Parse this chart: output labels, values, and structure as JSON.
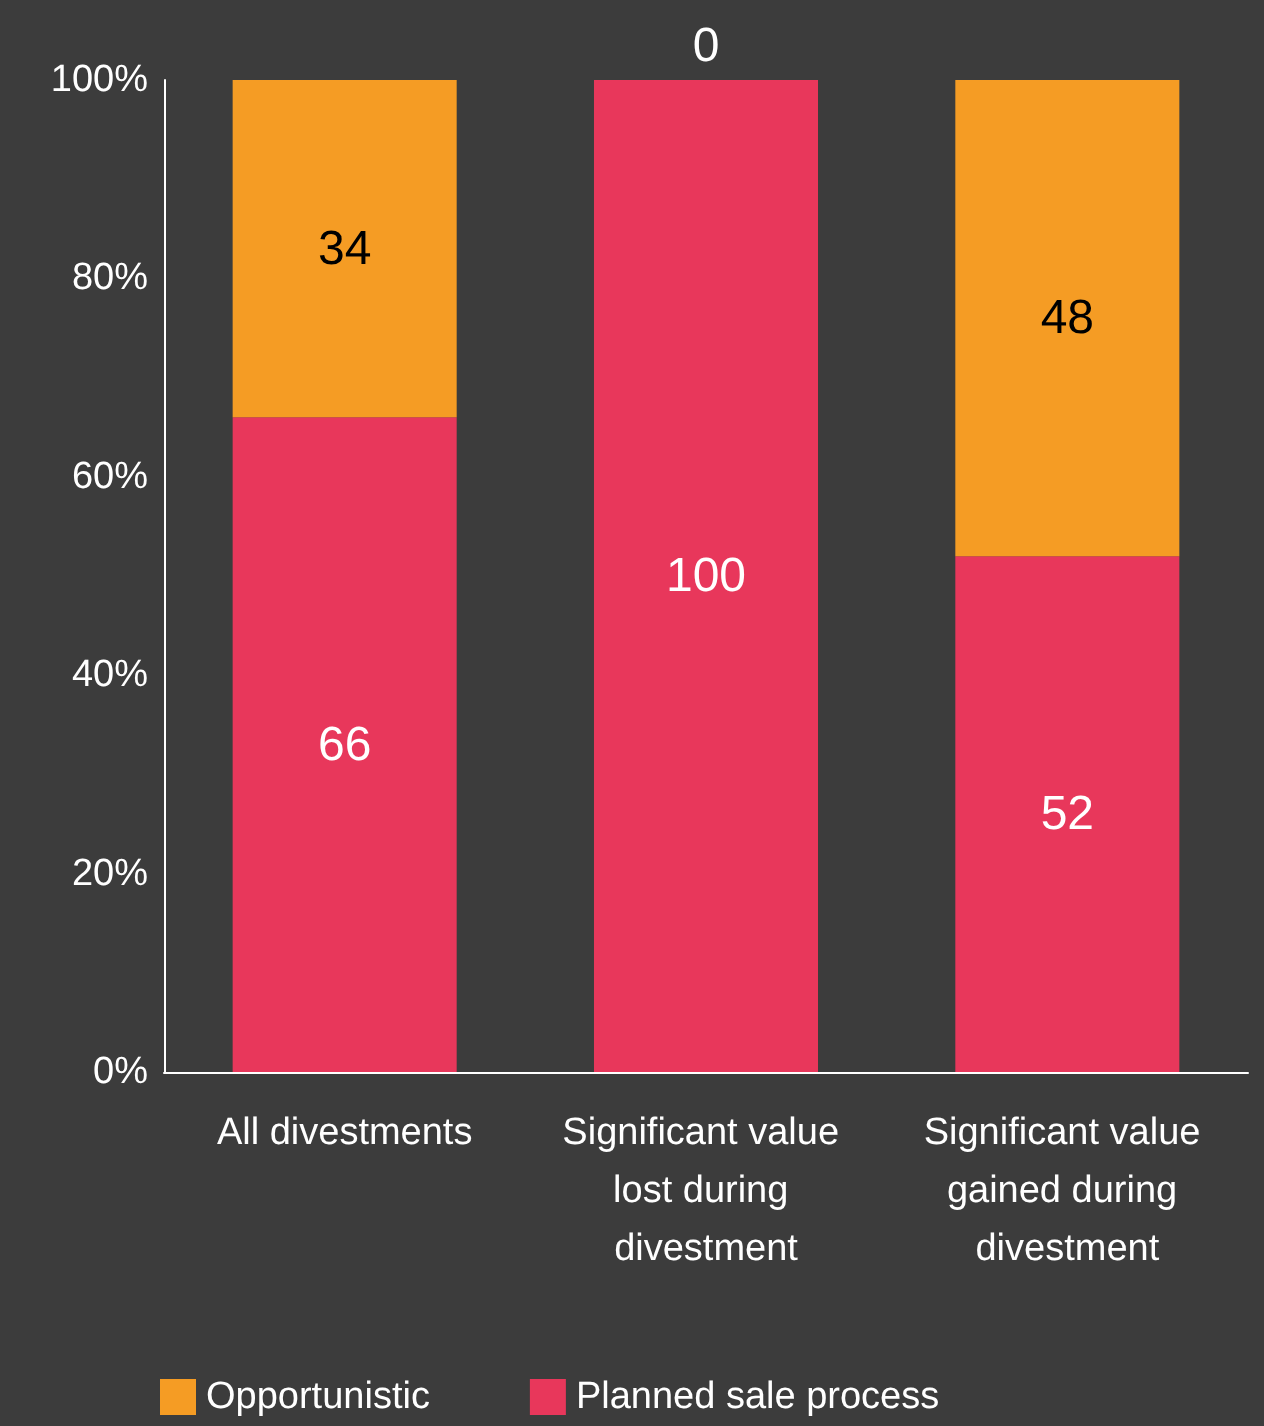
{
  "chart_data": {
    "type": "bar",
    "stacked": true,
    "categories": [
      "All divestments",
      "Significant value lost during divestment",
      "Significant value gained during divestment"
    ],
    "series": [
      {
        "name": "Planned sale process",
        "color": "#e8375b",
        "values": [
          66,
          100,
          52
        ]
      },
      {
        "name": "Opportunistic",
        "color": "#f59c24",
        "values": [
          34,
          0,
          48
        ]
      }
    ],
    "ylim": [
      0,
      100
    ],
    "yticks": [
      {
        "value": 0,
        "label": "0%"
      },
      {
        "value": 20,
        "label": "20%"
      },
      {
        "value": 40,
        "label": "40%"
      },
      {
        "value": 60,
        "label": "60%"
      },
      {
        "value": 80,
        "label": "80%"
      },
      {
        "value": 100,
        "label": "100%"
      }
    ],
    "data_labels": true,
    "grid": false,
    "legend": "bottom left"
  }
}
